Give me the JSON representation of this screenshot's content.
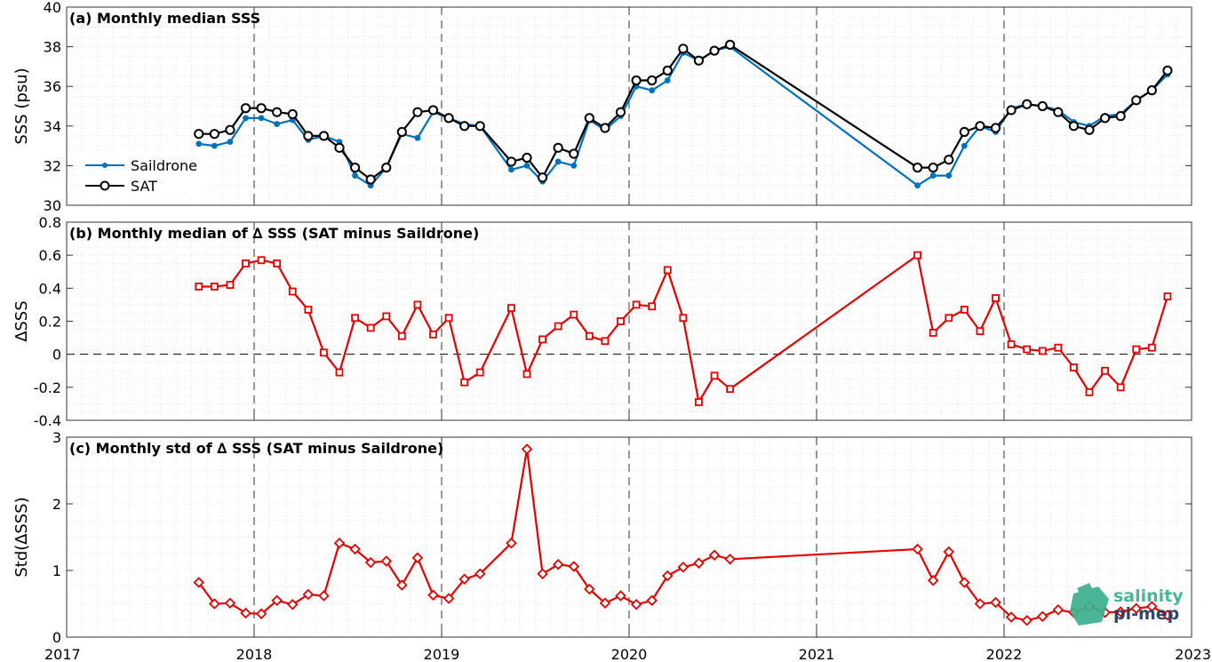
{
  "chart_data": [
    {
      "type": "line",
      "title": "(a) Monthly median SSS",
      "ylabel": "SSS (psu)",
      "ylim": [
        30,
        40
      ],
      "yticks": [
        "30",
        "32",
        "34",
        "36",
        "38",
        "40"
      ],
      "xlim": [
        "2017-01-01",
        "2023-01-01"
      ],
      "grid": true,
      "legend_position": "left",
      "series": [
        {
          "name": "Saildrone",
          "color": "#0072BD",
          "marker": "dot",
          "x": [
            "2017-09",
            "2017-10",
            "2017-11",
            "2017-12",
            "2018-01",
            "2018-02",
            "2018-03",
            "2018-04",
            "2018-05",
            "2018-06",
            "2018-07",
            "2018-08",
            "2018-09",
            "2018-10",
            "2018-11",
            "2018-12",
            "2019-01",
            "2019-02",
            "2019-03",
            "2019-05",
            "2019-06",
            "2019-07",
            "2019-08",
            "2019-09",
            "2019-10",
            "2019-11",
            "2019-12",
            "2020-01",
            "2020-02",
            "2020-03",
            "2020-04",
            "2020-05",
            "2020-06",
            "2020-07",
            "2021-07",
            "2021-08",
            "2021-09",
            "2021-10",
            "2021-11",
            "2021-12",
            "2022-01",
            "2022-02",
            "2022-03",
            "2022-04",
            "2022-05",
            "2022-06",
            "2022-07",
            "2022-08",
            "2022-09",
            "2022-10",
            "2022-11"
          ],
          "values": [
            33.1,
            33.0,
            33.2,
            34.4,
            34.4,
            34.1,
            34.3,
            33.3,
            33.5,
            33.2,
            31.5,
            31.0,
            31.9,
            33.6,
            33.4,
            34.7,
            34.4,
            34.1,
            34.0,
            31.8,
            32.0,
            31.2,
            32.2,
            32.0,
            34.3,
            33.8,
            34.5,
            36.0,
            35.8,
            36.3,
            37.7,
            37.3,
            37.8,
            38.0,
            31.0,
            31.5,
            31.5,
            33.0,
            34.0,
            33.7,
            34.9,
            35.1,
            35.0,
            34.8,
            34.2,
            34.0,
            34.5,
            34.6,
            35.3,
            35.8,
            36.6
          ]
        },
        {
          "name": "SAT",
          "color": "#000000",
          "marker": "circle",
          "x": [
            "2017-09",
            "2017-10",
            "2017-11",
            "2017-12",
            "2018-01",
            "2018-02",
            "2018-03",
            "2018-04",
            "2018-05",
            "2018-06",
            "2018-07",
            "2018-08",
            "2018-09",
            "2018-10",
            "2018-11",
            "2018-12",
            "2019-01",
            "2019-02",
            "2019-03",
            "2019-05",
            "2019-06",
            "2019-07",
            "2019-08",
            "2019-09",
            "2019-10",
            "2019-11",
            "2019-12",
            "2020-01",
            "2020-02",
            "2020-03",
            "2020-04",
            "2020-05",
            "2020-06",
            "2020-07",
            "2021-07",
            "2021-08",
            "2021-09",
            "2021-10",
            "2021-11",
            "2021-12",
            "2022-01",
            "2022-02",
            "2022-03",
            "2022-04",
            "2022-05",
            "2022-06",
            "2022-07",
            "2022-08",
            "2022-09",
            "2022-10",
            "2022-11"
          ],
          "values": [
            33.6,
            33.6,
            33.8,
            34.9,
            34.9,
            34.7,
            34.6,
            33.5,
            33.5,
            32.9,
            31.9,
            31.3,
            31.9,
            33.7,
            34.7,
            34.8,
            34.4,
            34.0,
            34.0,
            32.2,
            32.4,
            31.4,
            32.9,
            32.6,
            34.4,
            33.9,
            34.7,
            36.3,
            36.3,
            36.8,
            37.9,
            37.3,
            37.8,
            38.1,
            31.9,
            31.9,
            32.3,
            33.7,
            34.0,
            33.9,
            34.8,
            35.1,
            35.0,
            34.7,
            34.0,
            33.8,
            34.4,
            34.5,
            35.3,
            35.8,
            36.8
          ]
        }
      ]
    },
    {
      "type": "line",
      "title": "(b) Monthly median of ∆ SSS (SAT minus Saildrone)",
      "ylabel": "∆SSS",
      "ylim": [
        -0.4,
        0.8
      ],
      "yticks": [
        "-0.4",
        "-0.2",
        "0",
        "0.2",
        "0.4",
        "0.6",
        "0.8"
      ],
      "xlim": [
        "2017-01-01",
        "2023-01-01"
      ],
      "grid": true,
      "reference_line": 0,
      "series": [
        {
          "color": "#E60000",
          "marker": "square",
          "x": [
            "2017-09",
            "2017-10",
            "2017-11",
            "2017-12",
            "2018-01",
            "2018-02",
            "2018-03",
            "2018-04",
            "2018-05",
            "2018-06",
            "2018-07",
            "2018-08",
            "2018-09",
            "2018-10",
            "2018-11",
            "2018-12",
            "2019-01",
            "2019-02",
            "2019-03",
            "2019-05",
            "2019-06",
            "2019-07",
            "2019-08",
            "2019-09",
            "2019-10",
            "2019-11",
            "2019-12",
            "2020-01",
            "2020-02",
            "2020-03",
            "2020-04",
            "2020-05",
            "2020-06",
            "2020-07",
            "2021-07",
            "2021-08",
            "2021-09",
            "2021-10",
            "2021-11",
            "2021-12",
            "2022-01",
            "2022-02",
            "2022-03",
            "2022-04",
            "2022-05",
            "2022-06",
            "2022-07",
            "2022-08",
            "2022-09",
            "2022-10",
            "2022-11"
          ],
          "values": [
            0.41,
            0.41,
            0.42,
            0.55,
            0.57,
            0.55,
            0.38,
            0.27,
            0.01,
            -0.11,
            0.22,
            0.16,
            0.23,
            0.11,
            0.3,
            0.12,
            0.22,
            -0.17,
            -0.11,
            0.28,
            -0.12,
            0.09,
            0.17,
            0.24,
            0.11,
            0.08,
            0.2,
            0.3,
            0.29,
            0.51,
            0.22,
            -0.29,
            -0.13,
            -0.21,
            0.6,
            0.13,
            0.22,
            0.27,
            0.14,
            0.34,
            0.06,
            0.03,
            0.02,
            0.04,
            -0.08,
            -0.23,
            -0.1,
            -0.2,
            0.03,
            0.04,
            0.35
          ]
        }
      ]
    },
    {
      "type": "line",
      "title": "(c) Monthly std of ∆ SSS (SAT minus Saildrone)",
      "ylabel": "Std(∆SSS)",
      "ylim": [
        0,
        3
      ],
      "yticks": [
        "0",
        "1",
        "2",
        "3"
      ],
      "xlim": [
        "2017-01-01",
        "2023-01-01"
      ],
      "xticks": [
        "2017",
        "2018",
        "2019",
        "2020",
        "2021",
        "2022",
        "2023"
      ],
      "grid": true,
      "series": [
        {
          "color": "#E60000",
          "marker": "diamond",
          "x": [
            "2017-09",
            "2017-10",
            "2017-11",
            "2017-12",
            "2018-01",
            "2018-02",
            "2018-03",
            "2018-04",
            "2018-05",
            "2018-06",
            "2018-07",
            "2018-08",
            "2018-09",
            "2018-10",
            "2018-11",
            "2018-12",
            "2019-01",
            "2019-02",
            "2019-03",
            "2019-05",
            "2019-06",
            "2019-07",
            "2019-08",
            "2019-09",
            "2019-10",
            "2019-11",
            "2019-12",
            "2020-01",
            "2020-02",
            "2020-03",
            "2020-04",
            "2020-05",
            "2020-06",
            "2020-07",
            "2021-07",
            "2021-08",
            "2021-09",
            "2021-10",
            "2021-11",
            "2021-12",
            "2022-01",
            "2022-02",
            "2022-03",
            "2022-04",
            "2022-05",
            "2022-06",
            "2022-07",
            "2022-08",
            "2022-09",
            "2022-10",
            "2022-11"
          ],
          "values": [
            0.82,
            0.5,
            0.51,
            0.36,
            0.35,
            0.55,
            0.49,
            0.64,
            0.62,
            1.41,
            1.32,
            1.12,
            1.14,
            0.78,
            1.19,
            0.63,
            0.58,
            0.87,
            0.95,
            1.41,
            2.82,
            0.95,
            1.09,
            1.06,
            0.72,
            0.51,
            0.62,
            0.49,
            0.55,
            0.92,
            1.05,
            1.11,
            1.23,
            1.17,
            1.32,
            0.85,
            1.28,
            0.82,
            0.5,
            0.52,
            0.3,
            0.25,
            0.31,
            0.41,
            0.37,
            0.46,
            0.37,
            0.38,
            0.43,
            0.46,
            0.33
          ]
        }
      ]
    }
  ],
  "legend": {
    "saildrone_label": "Saildrone",
    "sat_label": "SAT"
  },
  "logo": {
    "line1": "salinity",
    "line2": "pi-mep",
    "color_main": "#3bb08f",
    "color_text2": "#1e3a5f"
  }
}
